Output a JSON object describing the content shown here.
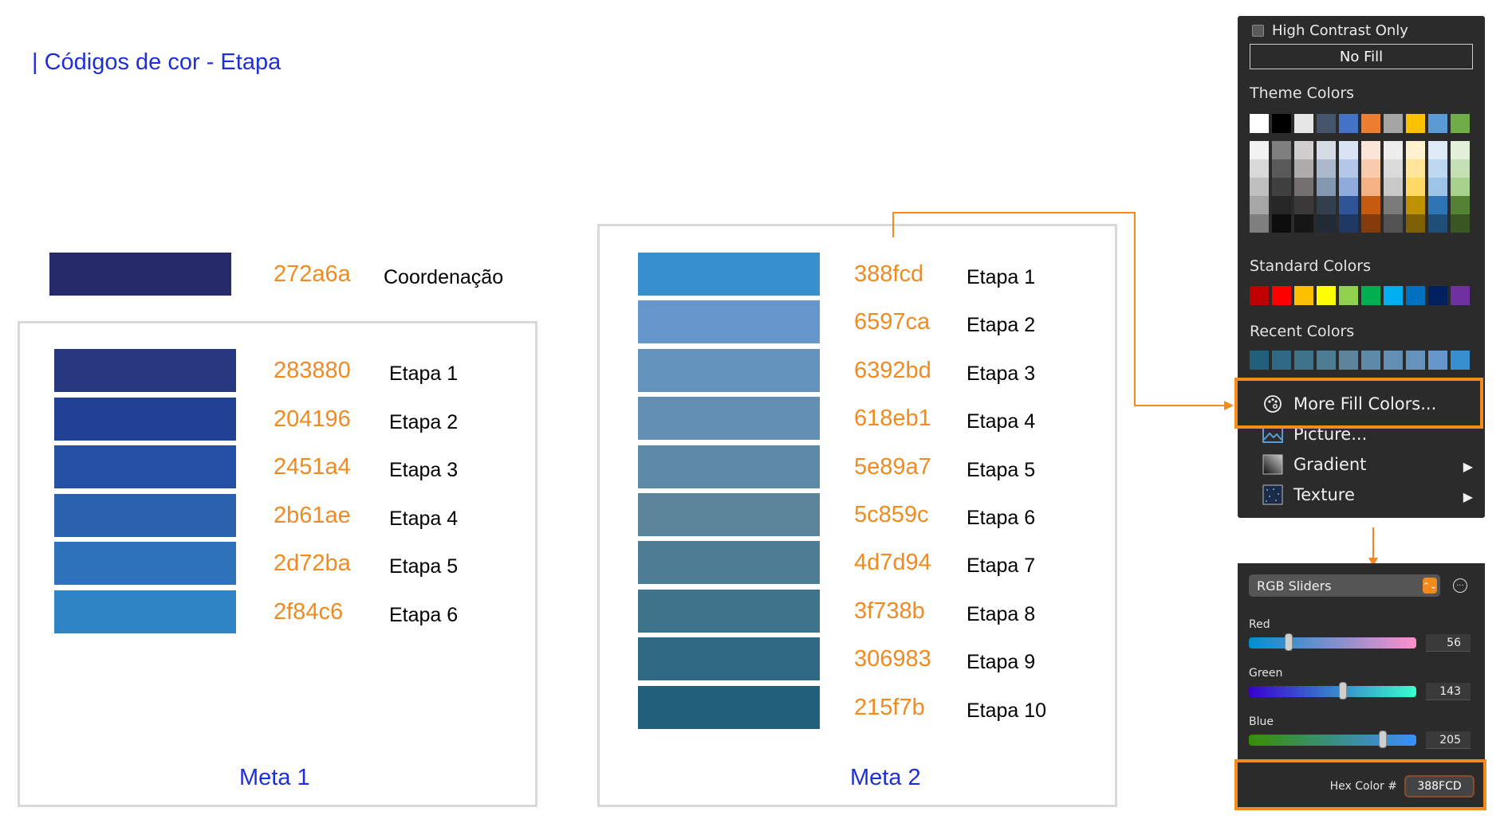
{
  "page_title": "| Códigos de cor - Etapa",
  "coordination": {
    "hex": "272a6a",
    "label": "Coordenação",
    "color": "#272a6a"
  },
  "meta1": {
    "title": "Meta 1",
    "rows": [
      {
        "hex": "283880",
        "label": "Etapa 1",
        "color": "#283880"
      },
      {
        "hex": "204196",
        "label": "Etapa 2",
        "color": "#204196"
      },
      {
        "hex": "2451a4",
        "label": "Etapa 3",
        "color": "#2451a4"
      },
      {
        "hex": "2b61ae",
        "label": "Etapa 4",
        "color": "#2b61ae"
      },
      {
        "hex": "2d72ba",
        "label": "Etapa 5",
        "color": "#2d72ba"
      },
      {
        "hex": "2f84c6",
        "label": "Etapa 6",
        "color": "#2f84c6"
      }
    ]
  },
  "meta2": {
    "title": "Meta 2",
    "rows": [
      {
        "hex": "388fcd",
        "label": "Etapa 1",
        "color": "#388fcd"
      },
      {
        "hex": "6597ca",
        "label": "Etapa 2",
        "color": "#6597ca"
      },
      {
        "hex": "6392bd",
        "label": "Etapa 3",
        "color": "#6392bd"
      },
      {
        "hex": "618eb1",
        "label": "Etapa 4",
        "color": "#618eb1"
      },
      {
        "hex": "5e89a7",
        "label": "Etapa 5",
        "color": "#5e89a7"
      },
      {
        "hex": "5c859c",
        "label": "Etapa 6",
        "color": "#5c859c"
      },
      {
        "hex": "4d7d94",
        "label": "Etapa 7",
        "color": "#4d7d94"
      },
      {
        "hex": "3f738b",
        "label": "Etapa 8",
        "color": "#3f738b"
      },
      {
        "hex": "306983",
        "label": "Etapa 9",
        "color": "#306983"
      },
      {
        "hex": "215f7b",
        "label": "Etapa 10",
        "color": "#215f7b"
      }
    ]
  },
  "fill_menu": {
    "high_contrast_label": "High Contrast Only",
    "no_fill_label": "No Fill",
    "theme_colors_title": "Theme Colors",
    "theme_colors": [
      "#ffffff",
      "#000000",
      "#e7e6e6",
      "#44546a",
      "#4472c4",
      "#ed7d31",
      "#a5a5a5",
      "#ffc000",
      "#5b9bd5",
      "#70ad47"
    ],
    "theme_tones": [
      [
        "#f2f2f2",
        "#d9d9d9",
        "#bfbfbf",
        "#a6a6a6",
        "#7f7f7f"
      ],
      [
        "#7f7f7f",
        "#595959",
        "#404040",
        "#262626",
        "#0d0d0d"
      ],
      [
        "#d0cece",
        "#aeabab",
        "#757070",
        "#3a3838",
        "#171616"
      ],
      [
        "#d6dce4",
        "#adb9ca",
        "#8497b0",
        "#333f4f",
        "#222a35"
      ],
      [
        "#dae3f3",
        "#b4c7e7",
        "#8faadc",
        "#2f5597",
        "#203864"
      ],
      [
        "#fbe5d6",
        "#f8cbad",
        "#f4b183",
        "#c55a11",
        "#843c0c"
      ],
      [
        "#ededed",
        "#dbdbdb",
        "#c9c9c9",
        "#7b7b7b",
        "#525252"
      ],
      [
        "#fff2cc",
        "#ffe699",
        "#ffd966",
        "#bf9000",
        "#7f6000"
      ],
      [
        "#deebf7",
        "#bdd7ee",
        "#9dc3e6",
        "#2e75b6",
        "#1f4e79"
      ],
      [
        "#e2f0d9",
        "#c5e0b4",
        "#a9d18e",
        "#548235",
        "#385723"
      ]
    ],
    "standard_colors_title": "Standard Colors",
    "standard_colors": [
      "#c00000",
      "#ff0000",
      "#ffc000",
      "#ffff00",
      "#92d050",
      "#00b050",
      "#00b0f0",
      "#0070c0",
      "#002060",
      "#7030a0"
    ],
    "recent_colors_title": "Recent Colors",
    "recent_colors": [
      "#215f7b",
      "#306983",
      "#3f738b",
      "#4d7d94",
      "#5c859c",
      "#5e89a7",
      "#618eb1",
      "#6392bd",
      "#6597ca",
      "#388fcd"
    ],
    "items": {
      "more_fill": "More Fill Colors...",
      "picture": "Picture...",
      "gradient": "Gradient",
      "texture": "Texture"
    },
    "submenu_arrow": "▶"
  },
  "rgb_panel": {
    "mode": "RGB Sliders",
    "stepper_glyph": "⌃⌄",
    "more_glyph": "···",
    "red_label": "Red",
    "red_value": "56",
    "green_label": "Green",
    "green_value": "143",
    "blue_label": "Blue",
    "blue_value": "205",
    "hex_label": "Hex Color #",
    "hex_value": "388FCD"
  }
}
